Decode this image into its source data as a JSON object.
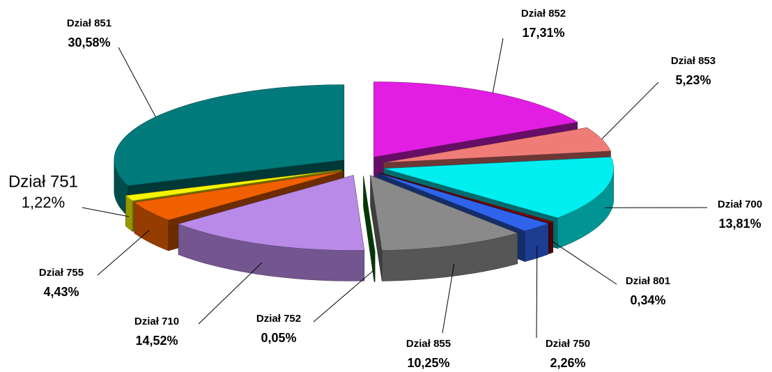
{
  "chart_data": {
    "type": "pie3d",
    "categories": [
      "Dział 852",
      "Dział 853",
      "Dział 700",
      "Dział 801",
      "Dział 750",
      "Dział 855",
      "Dział 752",
      "Dział 710",
      "Dział 755",
      "Dział 751",
      "Dział 851"
    ],
    "values": [
      17.31,
      5.23,
      13.81,
      0.34,
      2.26,
      10.25,
      0.05,
      14.52,
      4.43,
      1.22,
      30.58
    ],
    "value_labels": [
      "17,31%",
      "5,23%",
      "13,81%",
      "0,34%",
      "2,26%",
      "10,25%",
      "0,05%",
      "14,52%",
      "4,43%",
      "1,22%",
      "30,58%"
    ],
    "colors": [
      "#e21ee2",
      "#f07c78",
      "#00eef0",
      "#8b0000",
      "#2f63ea",
      "#8a8a8a",
      "#0a7a0a",
      "#b98ae8",
      "#f06000",
      "#f4f400",
      "#007a7a"
    ]
  }
}
